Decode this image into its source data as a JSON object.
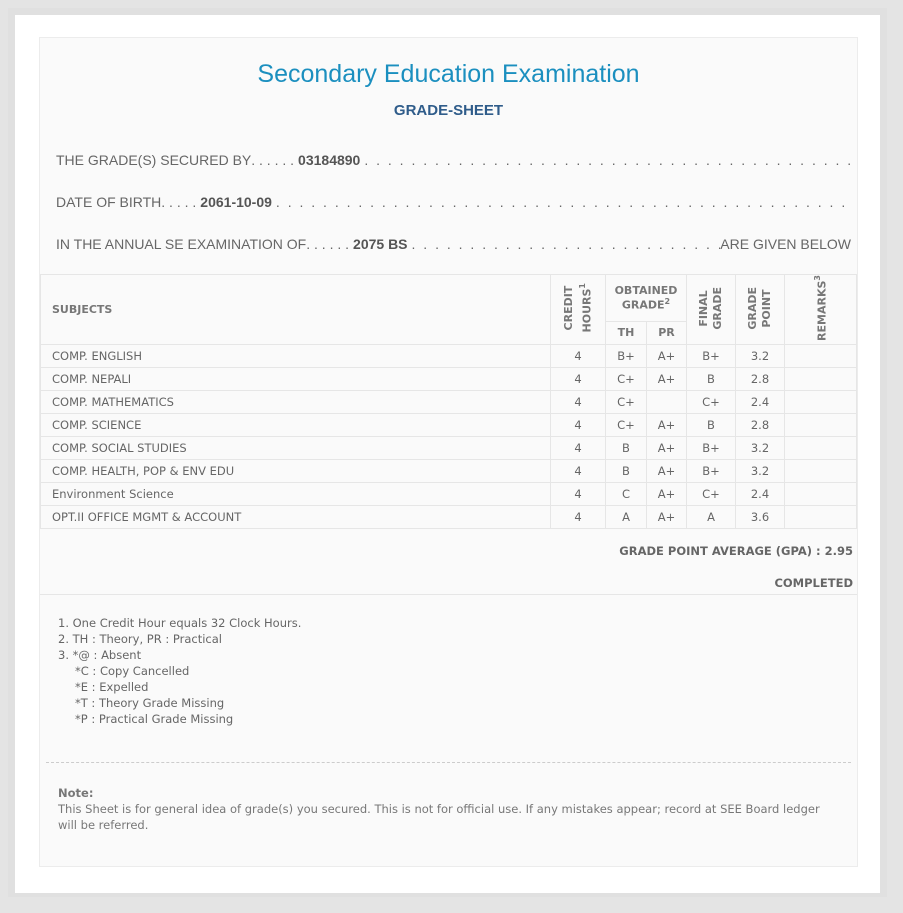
{
  "title": "Secondary Education Examination",
  "subtitle": "GRADE-SHEET",
  "info": {
    "secured_by_label": "THE GRADE(S) SECURED BY",
    "symbol_no": "03184890",
    "dob_label": "DATE OF BIRTH",
    "dob": "2061-10-09",
    "exam_label": "IN THE ANNUAL SE EXAMINATION OF",
    "exam_year": "2075 BS",
    "given_below": "ARE GIVEN BELOW"
  },
  "table": {
    "headers": {
      "subjects": "SUBJECTS",
      "credit": "CREDIT",
      "hours": "HOURS",
      "obtained": "OBTAINED",
      "grade": "GRADE",
      "th": "TH",
      "pr": "PR",
      "final1": "FINAL",
      "final2": "GRADE",
      "gp1": "GRADE",
      "gp2": "POINT",
      "remarks": "REMARKS",
      "sup1": "1",
      "sup2": "2",
      "sup3": "3"
    },
    "rows": [
      [
        "COMP. ENGLISH",
        "4",
        "B+",
        "A+",
        "B+",
        "3.2",
        ""
      ],
      [
        "COMP. NEPALI",
        "4",
        "C+",
        "A+",
        "B",
        "2.8",
        ""
      ],
      [
        "COMP. MATHEMATICS",
        "4",
        "C+",
        "",
        "C+",
        "2.4",
        ""
      ],
      [
        "COMP. SCIENCE",
        "4",
        "C+",
        "A+",
        "B",
        "2.8",
        ""
      ],
      [
        "COMP. SOCIAL STUDIES",
        "4",
        "B",
        "A+",
        "B+",
        "3.2",
        ""
      ],
      [
        "COMP. HEALTH, POP & ENV EDU",
        "4",
        "B",
        "A+",
        "B+",
        "3.2",
        ""
      ],
      [
        "Environment Science",
        "4",
        "C",
        "A+",
        "C+",
        "2.4",
        ""
      ],
      [
        "OPT.II OFFICE MGMT & ACCOUNT",
        "4",
        "A",
        "A+",
        "A",
        "3.6",
        ""
      ]
    ]
  },
  "gpa": "GRADE POINT AVERAGE (GPA) : 2.95",
  "status": "COMPLETED",
  "notes": [
    "1. One Credit Hour equals 32 Clock Hours.",
    "2. TH : Theory, PR : Practical",
    "3. *@ : Absent",
    "*C : Copy Cancelled",
    "*E : Expelled",
    "*T : Theory Grade Missing",
    "*P : Practical Grade Missing"
  ],
  "note_title": "Note:",
  "note_text": "This Sheet is for general idea of grade(s) you secured. This is not for official use. If any mistakes appear; record at SEE Board ledger will be referred."
}
